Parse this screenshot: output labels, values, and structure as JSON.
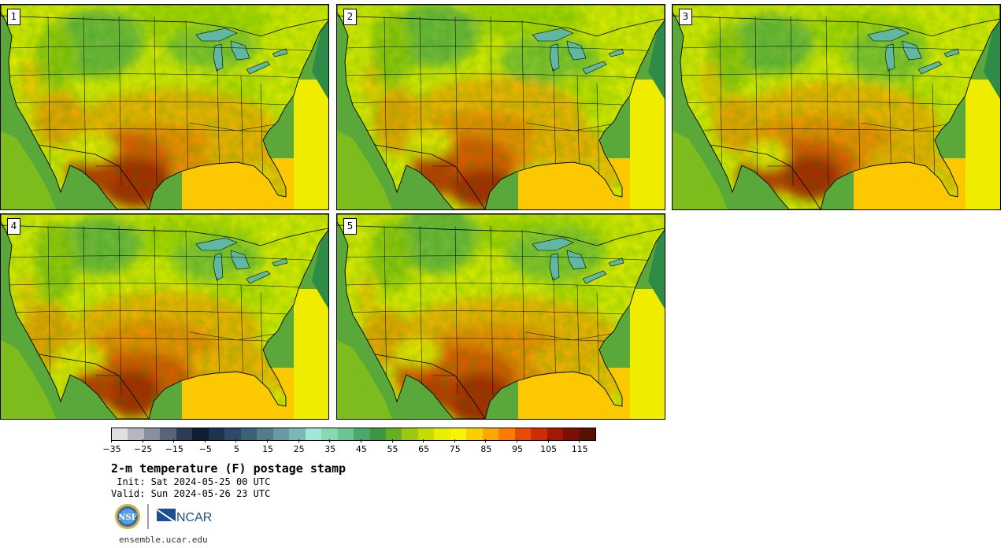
{
  "figure": {
    "title": "2-m temperature (F) postage stamp",
    "init": " Init: Sat 2024-05-25 00 UTC",
    "valid": "Valid: Sun 2024-05-26 23 UTC",
    "website": "ensemble.ucar.edu",
    "logos": {
      "nsf_text": "NSF",
      "ncar_text": "NCAR"
    }
  },
  "panels": [
    {
      "label": "1",
      "seed": 1
    },
    {
      "label": "2",
      "seed": 2
    },
    {
      "label": "3",
      "seed": 3
    },
    {
      "label": "4",
      "seed": 4
    },
    {
      "label": "5",
      "seed": 5
    }
  ],
  "colorbar": {
    "min": -35,
    "max": 120,
    "step": 5,
    "tick_labels": [
      "−35",
      "−25",
      "−15",
      "−5",
      "5",
      "15",
      "25",
      "35",
      "45",
      "55",
      "65",
      "75",
      "85",
      "95",
      "105",
      "115"
    ],
    "tick_values": [
      -35,
      -25,
      -15,
      -5,
      5,
      15,
      25,
      35,
      45,
      55,
      65,
      75,
      85,
      95,
      105,
      115
    ],
    "colors": [
      "#e0e0e0",
      "#b4b6c0",
      "#8890a0",
      "#5a6478",
      "#2c3a58",
      "#0e1e34",
      "#1c3450",
      "#2a4a66",
      "#3c6078",
      "#567c8c",
      "#6a9aa4",
      "#7cb8b8",
      "#a0e8d8",
      "#88d8b0",
      "#6cc494",
      "#4ca868",
      "#3c9840",
      "#64b020",
      "#9cc810",
      "#c4dc00",
      "#e8f000",
      "#f8f400",
      "#fcd000",
      "#fca800",
      "#fc7c00",
      "#e84c00",
      "#cc2c00",
      "#a41800",
      "#7c1000",
      "#581000"
    ]
  },
  "map_colors": {
    "ocean_west_near": "#4a9c2c",
    "ocean_west_far": "#5aa83a",
    "ocean_atlantic": "#2e8c48",
    "gulf": "#fcc800",
    "canada": "#b0d800",
    "lakes": "#60b8a0"
  }
}
